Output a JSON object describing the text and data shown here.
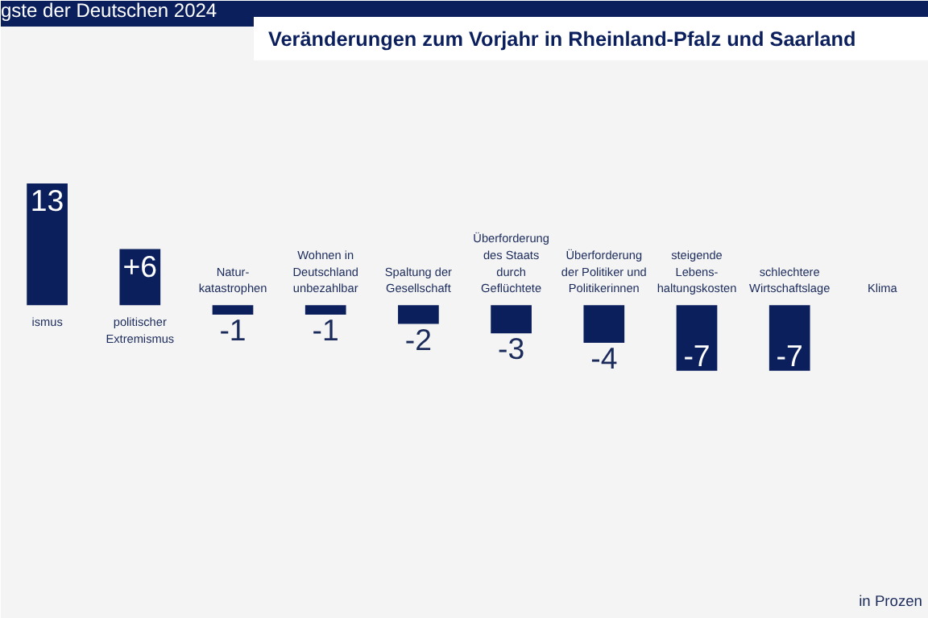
{
  "chart_data": {
    "type": "bar",
    "title": "Veränderungen zum Vorjahr in Rheinland-Pfalz und Saarland",
    "subtitle": "gste der Deutschen 2024",
    "categories": [
      "ismus",
      "politischer\nExtremismus",
      "Natur-\nkatastrophen",
      "Wohnen in\nDeutschland\nunbezahlbar",
      "Spaltung der\nGesellschaft",
      "Überforderung\ndes Staats\ndurch\nGeflüchtete",
      "Überforderung\nder Politiker und\nPolitikerinnen",
      "steigende\nLebens-\nhaltungskosten",
      "schlechtere\nWirtschaftslage",
      "Klima"
    ],
    "values": [
      13,
      6,
      -1,
      -1,
      -2,
      -3,
      -4,
      -7,
      -7,
      null
    ],
    "value_labels": [
      "13",
      "+6",
      "-1",
      "-1",
      "-2",
      "-3",
      "-4",
      "-7",
      "-7",
      null
    ],
    "color": "#0b1f5c",
    "annotations": [
      "in Prozen"
    ]
  }
}
